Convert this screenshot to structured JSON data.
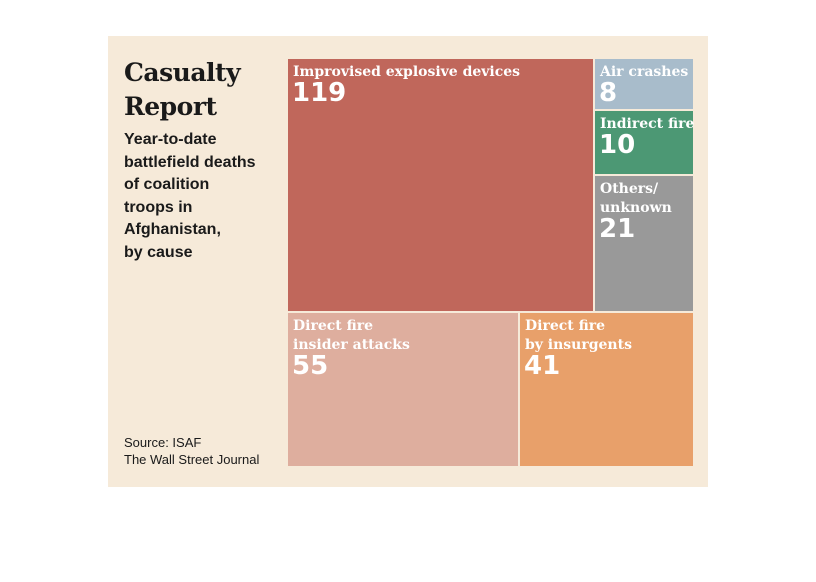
{
  "header": {
    "title_lines": [
      "Casualty",
      "Report"
    ],
    "subtitle_lines": [
      "Year-to-date",
      "battlefield deaths",
      "of coalition",
      "troops in",
      "Afghanistan,",
      "by cause"
    ]
  },
  "footer": {
    "source": "Source: ISAF",
    "publisher": "The Wall Street Journal"
  },
  "chart_data": {
    "type": "treemap",
    "title": "Casualty Report",
    "subtitle": "Year-to-date battlefield deaths of coalition troops in Afghanistan, by cause",
    "categories": [
      "Improvised explosive devices",
      "Air crashes",
      "Indirect fire",
      "Others/ unknown",
      "Direct fire insider attacks",
      "Direct fire by insurgents"
    ],
    "values": [
      119,
      8,
      10,
      21,
      55,
      41
    ],
    "items": [
      {
        "key": "ied",
        "label_lines": [
          "Improvised explosive devices"
        ],
        "value": 119,
        "color": "#c0675b"
      },
      {
        "key": "air",
        "label_lines": [
          "Air crashes"
        ],
        "value": 8,
        "color": "#a8bccb"
      },
      {
        "key": "indirect",
        "label_lines": [
          "Indirect fire"
        ],
        "value": 10,
        "color": "#4c9874"
      },
      {
        "key": "others",
        "label_lines": [
          "Others/",
          "unknown"
        ],
        "value": 21,
        "color": "#999999"
      },
      {
        "key": "insider",
        "label_lines": [
          "Direct fire",
          "insider attacks"
        ],
        "value": 55,
        "color": "#deae9e"
      },
      {
        "key": "insurgents",
        "label_lines": [
          "Direct fire",
          "by insurgents"
        ],
        "value": 41,
        "color": "#e8a06a"
      }
    ]
  },
  "colors": {
    "background": "#f6ead9",
    "text": "#1a1a1a"
  }
}
